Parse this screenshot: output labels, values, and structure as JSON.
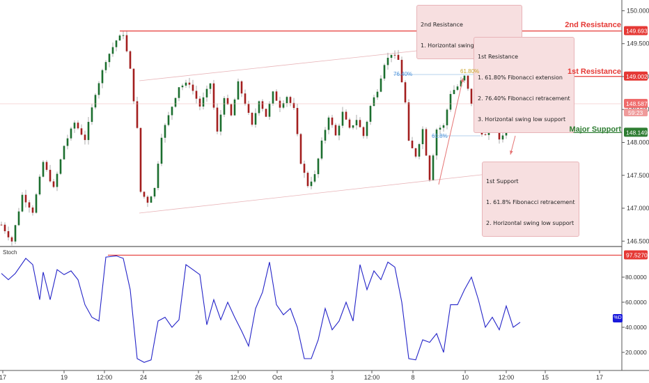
{
  "chart_data": [
    {
      "type": "candlestick",
      "title": "",
      "y_axis": {
        "ticks": [
          "150.000",
          "149.500",
          "149.000",
          "148.500",
          "148.000",
          "147.500",
          "147.000",
          "146.500"
        ],
        "ylim": [
          146.45,
          150.1
        ]
      },
      "x_axis": {
        "ticks": [
          "17",
          "19",
          "12:00",
          "24",
          "26",
          "12:00",
          "Oct",
          "3",
          "12:00",
          "8",
          "10",
          "12:00",
          "15",
          "17"
        ]
      },
      "levels": [
        {
          "name": "2nd Resistance",
          "price": "149.693",
          "value": 149.693,
          "color": "#e53935"
        },
        {
          "name": "1st Resistance",
          "price": "149.002",
          "value": 149.002,
          "color": "#e53935"
        },
        {
          "name": "Major Support",
          "price": "148.149",
          "value": 148.149,
          "color": "#2e7d32"
        }
      ],
      "current_price": {
        "price": "148.587",
        "value": 148.587,
        "countdown": "59:23",
        "color": "#ef6c6c"
      },
      "fib_labels": [
        "76.40%",
        "61.80%",
        "61.8%"
      ],
      "annotations": [
        {
          "id": "second_resistance",
          "lines": [
            "2nd Resistance",
            "1. Horizontal swing high resistance"
          ]
        },
        {
          "id": "first_resistance",
          "lines": [
            "1st Resistance",
            "1. 61.80% Fibonacci extension",
            "2. 76.40% Fibonacci retracement",
            "3. Horizontal swing low support"
          ]
        },
        {
          "id": "first_support",
          "lines": [
            "1st Support",
            "1. 61.8% Fibonacci retracement",
            "2. Horizontal swing low support"
          ]
        }
      ],
      "price_path": [
        {
          "t": 0,
          "p": 146.75
        },
        {
          "t": 3,
          "p": 146.5
        },
        {
          "t": 6,
          "p": 147.2
        },
        {
          "t": 9,
          "p": 146.95
        },
        {
          "t": 12,
          "p": 147.7
        },
        {
          "t": 15,
          "p": 147.3
        },
        {
          "t": 18,
          "p": 147.95
        },
        {
          "t": 21,
          "p": 148.3
        },
        {
          "t": 24,
          "p": 148.05
        },
        {
          "t": 27,
          "p": 148.75
        },
        {
          "t": 30,
          "p": 149.25
        },
        {
          "t": 33,
          "p": 149.55
        },
        {
          "t": 35,
          "p": 149.65
        },
        {
          "t": 37,
          "p": 149.1
        },
        {
          "t": 39,
          "p": 148.2
        },
        {
          "t": 40,
          "p": 147.25
        },
        {
          "t": 42,
          "p": 147.1
        },
        {
          "t": 44,
          "p": 147.3
        },
        {
          "t": 46,
          "p": 148.1
        },
        {
          "t": 48,
          "p": 148.4
        },
        {
          "t": 51,
          "p": 148.85
        },
        {
          "t": 54,
          "p": 148.9
        },
        {
          "t": 57,
          "p": 148.55
        },
        {
          "t": 60,
          "p": 148.9
        },
        {
          "t": 62,
          "p": 148.15
        },
        {
          "t": 64,
          "p": 148.7
        },
        {
          "t": 66,
          "p": 148.4
        },
        {
          "t": 68,
          "p": 148.9
        },
        {
          "t": 70,
          "p": 148.6
        },
        {
          "t": 72,
          "p": 148.25
        },
        {
          "t": 74,
          "p": 148.65
        },
        {
          "t": 76,
          "p": 148.4
        },
        {
          "t": 78,
          "p": 148.75
        },
        {
          "t": 80,
          "p": 148.55
        },
        {
          "t": 82,
          "p": 148.7
        },
        {
          "t": 84,
          "p": 148.5
        },
        {
          "t": 86,
          "p": 147.7
        },
        {
          "t": 88,
          "p": 147.35
        },
        {
          "t": 90,
          "p": 147.5
        },
        {
          "t": 92,
          "p": 148.0
        },
        {
          "t": 94,
          "p": 148.4
        },
        {
          "t": 96,
          "p": 148.1
        },
        {
          "t": 98,
          "p": 148.45
        },
        {
          "t": 100,
          "p": 148.2
        },
        {
          "t": 102,
          "p": 148.35
        },
        {
          "t": 104,
          "p": 148.1
        },
        {
          "t": 106,
          "p": 148.55
        },
        {
          "t": 108,
          "p": 148.8
        },
        {
          "t": 110,
          "p": 149.2
        },
        {
          "t": 112,
          "p": 149.35
        },
        {
          "t": 114,
          "p": 149.25
        },
        {
          "t": 116,
          "p": 148.6
        },
        {
          "t": 117,
          "p": 148.0
        },
        {
          "t": 119,
          "p": 147.8
        },
        {
          "t": 121,
          "p": 148.2
        },
        {
          "t": 123,
          "p": 147.45
        },
        {
          "t": 125,
          "p": 148.2
        },
        {
          "t": 127,
          "p": 148.25
        },
        {
          "t": 129,
          "p": 148.75
        },
        {
          "t": 131,
          "p": 148.85
        },
        {
          "t": 133,
          "p": 149.0
        },
        {
          "t": 135,
          "p": 148.6
        },
        {
          "t": 137,
          "p": 148.2
        },
        {
          "t": 139,
          "p": 148.1
        },
        {
          "t": 141,
          "p": 148.35
        },
        {
          "t": 143,
          "p": 148.05
        },
        {
          "t": 145,
          "p": 148.2
        },
        {
          "t": 147,
          "p": 148.4
        },
        {
          "t": 149,
          "p": 148.55
        }
      ],
      "stoch_axis": {
        "ticks": [
          "80.0000",
          "60.0000",
          "40.0000",
          "20.0000"
        ],
        "ylim": [
          10,
          100
        ]
      },
      "stoch_level": {
        "label": "97.5270",
        "value": 97.527,
        "color": "#e53935"
      },
      "stoch_label": "Stoch",
      "stoch_series_label": "%D",
      "stoch_path": [
        {
          "t": 0,
          "v": 83
        },
        {
          "t": 2,
          "v": 78
        },
        {
          "t": 4,
          "v": 83
        },
        {
          "t": 7,
          "v": 95
        },
        {
          "t": 9,
          "v": 90
        },
        {
          "t": 11,
          "v": 62
        },
        {
          "t": 12,
          "v": 84
        },
        {
          "t": 14,
          "v": 62
        },
        {
          "t": 16,
          "v": 86
        },
        {
          "t": 18,
          "v": 82
        },
        {
          "t": 20,
          "v": 85
        },
        {
          "t": 22,
          "v": 78
        },
        {
          "t": 24,
          "v": 58
        },
        {
          "t": 26,
          "v": 48
        },
        {
          "t": 28,
          "v": 45
        },
        {
          "t": 30,
          "v": 96
        },
        {
          "t": 33,
          "v": 97
        },
        {
          "t": 35,
          "v": 95
        },
        {
          "t": 37,
          "v": 70
        },
        {
          "t": 39,
          "v": 15
        },
        {
          "t": 41,
          "v": 12
        },
        {
          "t": 43,
          "v": 14
        },
        {
          "t": 45,
          "v": 45
        },
        {
          "t": 47,
          "v": 48
        },
        {
          "t": 49,
          "v": 40
        },
        {
          "t": 51,
          "v": 46
        },
        {
          "t": 53,
          "v": 90
        },
        {
          "t": 55,
          "v": 86
        },
        {
          "t": 57,
          "v": 82
        },
        {
          "t": 59,
          "v": 42
        },
        {
          "t": 61,
          "v": 62
        },
        {
          "t": 63,
          "v": 46
        },
        {
          "t": 65,
          "v": 60
        },
        {
          "t": 67,
          "v": 48
        },
        {
          "t": 69,
          "v": 37
        },
        {
          "t": 71,
          "v": 25
        },
        {
          "t": 73,
          "v": 55
        },
        {
          "t": 75,
          "v": 68
        },
        {
          "t": 77,
          "v": 92
        },
        {
          "t": 79,
          "v": 58
        },
        {
          "t": 81,
          "v": 50
        },
        {
          "t": 83,
          "v": 55
        },
        {
          "t": 85,
          "v": 40
        },
        {
          "t": 87,
          "v": 15
        },
        {
          "t": 89,
          "v": 15
        },
        {
          "t": 91,
          "v": 30
        },
        {
          "t": 93,
          "v": 55
        },
        {
          "t": 95,
          "v": 38
        },
        {
          "t": 97,
          "v": 45
        },
        {
          "t": 99,
          "v": 60
        },
        {
          "t": 101,
          "v": 45
        },
        {
          "t": 103,
          "v": 90
        },
        {
          "t": 105,
          "v": 70
        },
        {
          "t": 107,
          "v": 85
        },
        {
          "t": 109,
          "v": 78
        },
        {
          "t": 111,
          "v": 92
        },
        {
          "t": 113,
          "v": 88
        },
        {
          "t": 115,
          "v": 60
        },
        {
          "t": 117,
          "v": 15
        },
        {
          "t": 119,
          "v": 14
        },
        {
          "t": 121,
          "v": 30
        },
        {
          "t": 123,
          "v": 28
        },
        {
          "t": 125,
          "v": 35
        },
        {
          "t": 127,
          "v": 20
        },
        {
          "t": 129,
          "v": 58
        },
        {
          "t": 131,
          "v": 58
        },
        {
          "t": 133,
          "v": 70
        },
        {
          "t": 135,
          "v": 80
        },
        {
          "t": 137,
          "v": 62
        },
        {
          "t": 139,
          "v": 40
        },
        {
          "t": 141,
          "v": 48
        },
        {
          "t": 143,
          "v": 38
        },
        {
          "t": 145,
          "v": 57
        },
        {
          "t": 147,
          "v": 40
        },
        {
          "t": 149,
          "v": 44
        }
      ]
    }
  ]
}
